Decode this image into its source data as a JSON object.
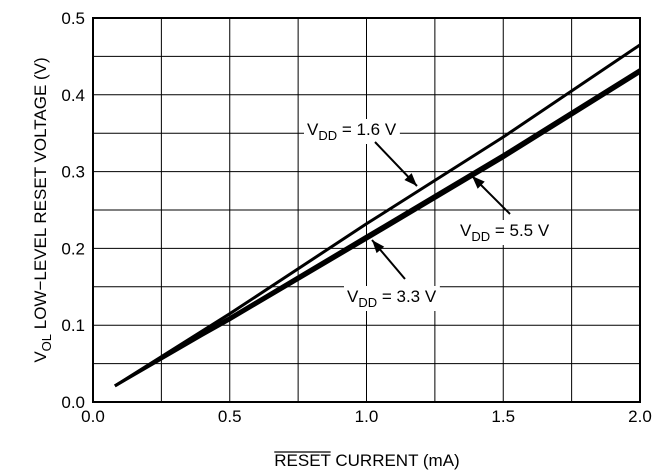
{
  "chart_data": {
    "type": "line",
    "xlabel_overline": "RESET",
    "xlabel_rest": " CURRENT (mA)",
    "ylabel_main": "V",
    "ylabel_sub": "OL",
    "ylabel_rest": " LOW−LEVEL RESET VOLTAGE (V)",
    "xlim": [
      0.0,
      2.0
    ],
    "ylim": [
      0.0,
      0.5
    ],
    "x_tick_labels": [
      "0.0",
      "0.5",
      "1.0",
      "1.5",
      "2.0"
    ],
    "y_tick_labels": [
      "0.0",
      "0.1",
      "0.2",
      "0.3",
      "0.4",
      "0.5"
    ],
    "grid": true,
    "series": [
      {
        "name": "V_DD = 1.6 V",
        "x": [
          0.08,
          0.5,
          1.0,
          1.5,
          2.0
        ],
        "y": [
          0.021,
          0.115,
          0.232,
          0.345,
          0.465
        ]
      },
      {
        "name": "V_DD = 3.3 V",
        "x": [
          0.08,
          0.4,
          0.5,
          1.0,
          1.5,
          2.0
        ],
        "y": [
          0.021,
          0.087,
          0.107,
          0.212,
          0.318,
          0.429
        ]
      },
      {
        "name": "V_DD = 5.5 V",
        "x": [
          0.08,
          0.4,
          0.5,
          1.0,
          1.5,
          2.0
        ],
        "y": [
          0.021,
          0.09,
          0.11,
          0.216,
          0.322,
          0.433
        ]
      }
    ],
    "annotations": [
      {
        "series_index": 0,
        "prefix": "V",
        "sub": "DD",
        "suffix": " = 1.6 V"
      },
      {
        "series_index": 1,
        "prefix": "V",
        "sub": "DD",
        "suffix": " = 3.3 V"
      },
      {
        "series_index": 2,
        "prefix": "V",
        "sub": "DD",
        "suffix": " = 5.5 V"
      }
    ]
  }
}
